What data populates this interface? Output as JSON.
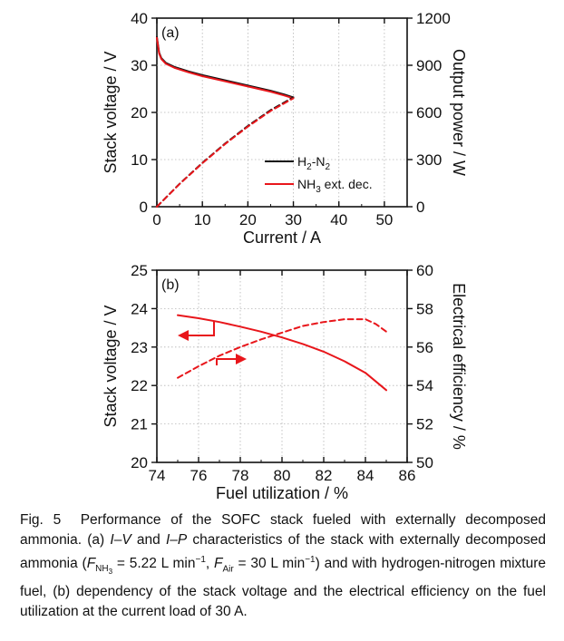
{
  "colors": {
    "red": "#e8161b",
    "black": "#111111",
    "grid": "#b5b5b5"
  },
  "chart_data": [
    {
      "type": "line",
      "panel_label": "(a)",
      "xlabel": "Current / A",
      "ylabel": "Stack voltage / V",
      "y2label": "Output power / W",
      "xlim": [
        0,
        55
      ],
      "ylim": [
        0,
        40
      ],
      "y2lim": [
        0,
        1200
      ],
      "xticks": [
        0,
        10,
        20,
        30,
        40,
        50
      ],
      "yticks": [
        0,
        10,
        20,
        30,
        40
      ],
      "y2ticks": [
        0,
        300,
        600,
        900,
        1200
      ],
      "legend": [
        {
          "label": "H2-N2",
          "color": "#111111"
        },
        {
          "label": "NH3 ext. dec.",
          "color": "#e8161b"
        }
      ],
      "series": [
        {
          "name": "H2-N2 voltage",
          "axis": "left",
          "style": "solid",
          "color": "#111111",
          "x": [
            0,
            0.5,
            1,
            2,
            4,
            7,
            10,
            15,
            20,
            25,
            28,
            30
          ],
          "y": [
            36.0,
            32.7,
            31.5,
            30.5,
            29.6,
            28.7,
            27.9,
            26.8,
            25.7,
            24.6,
            23.8,
            23.2
          ]
        },
        {
          "name": "NH3 ext. dec. voltage",
          "axis": "left",
          "style": "solid",
          "color": "#e8161b",
          "x": [
            0,
            0.5,
            1,
            2,
            4,
            7,
            10,
            15,
            20,
            25,
            28,
            30
          ],
          "y": [
            35.8,
            32.5,
            31.3,
            30.3,
            29.4,
            28.5,
            27.7,
            26.6,
            25.5,
            24.4,
            23.6,
            23.0
          ]
        },
        {
          "name": "H2-N2 power",
          "axis": "right",
          "style": "dashed",
          "color": "#111111",
          "x": [
            0,
            5,
            10,
            15,
            20,
            25,
            30
          ],
          "y": [
            0,
            146,
            279,
            402,
            514,
            615,
            696
          ]
        },
        {
          "name": "NH3 ext. dec. power",
          "axis": "right",
          "style": "dashed",
          "color": "#e8161b",
          "x": [
            0,
            5,
            10,
            15,
            20,
            25,
            30
          ],
          "y": [
            0,
            145,
            277,
            399,
            510,
            610,
            690
          ]
        }
      ]
    },
    {
      "type": "line",
      "panel_label": "(b)",
      "xlabel": "Fuel utilization / %",
      "ylabel": "Stack voltage / V",
      "y2label": "Electrical efficiency / %",
      "xlim": [
        74,
        86
      ],
      "ylim": [
        20,
        25
      ],
      "y2lim": [
        50,
        60
      ],
      "xticks": [
        74,
        76,
        78,
        80,
        82,
        84,
        86
      ],
      "yticks": [
        20,
        21,
        22,
        23,
        24,
        25
      ],
      "y2ticks": [
        50,
        52,
        54,
        56,
        58,
        60
      ],
      "series": [
        {
          "name": "Stack voltage",
          "axis": "left",
          "style": "solid",
          "color": "#e8161b",
          "x": [
            75,
            76,
            77,
            78,
            79,
            80,
            81,
            82,
            83,
            84,
            85
          ],
          "y": [
            23.83,
            23.75,
            23.65,
            23.53,
            23.4,
            23.25,
            23.08,
            22.88,
            22.63,
            22.33,
            21.88
          ]
        },
        {
          "name": "Electrical efficiency",
          "axis": "right",
          "style": "dashed",
          "color": "#e8161b",
          "x": [
            75,
            76,
            77,
            78,
            79,
            80,
            81,
            82,
            83,
            84,
            84.5,
            85
          ],
          "y": [
            54.4,
            55.0,
            55.55,
            56.0,
            56.4,
            56.75,
            57.1,
            57.3,
            57.45,
            57.45,
            57.2,
            56.8
          ]
        }
      ]
    }
  ],
  "caption": {
    "fig_label": "Fig. 5",
    "line1": "Performance of the SOFC stack fueled with externally decomposed ammonia. (a)",
    "iv": "I–V",
    "and": "and",
    "ip": "I–P",
    "line2": "characteristics of the stack with externally decomposed ammonia (",
    "f_nh3": "F",
    "f_nh3_sub": "NH",
    "f_nh3_subsub": "3",
    "f_nh3_val": " = 5.22 L min",
    "exp": "−1",
    "sep": ", ",
    "f_air": "F",
    "f_air_sub": "Air",
    "f_air_val": " = 30 L min",
    "line3": ") and with hydrogen-nitrogen mixture fuel, (b) dependency of the stack voltage and the electrical efficiency on the fuel utilization at the current load of 30 A."
  }
}
